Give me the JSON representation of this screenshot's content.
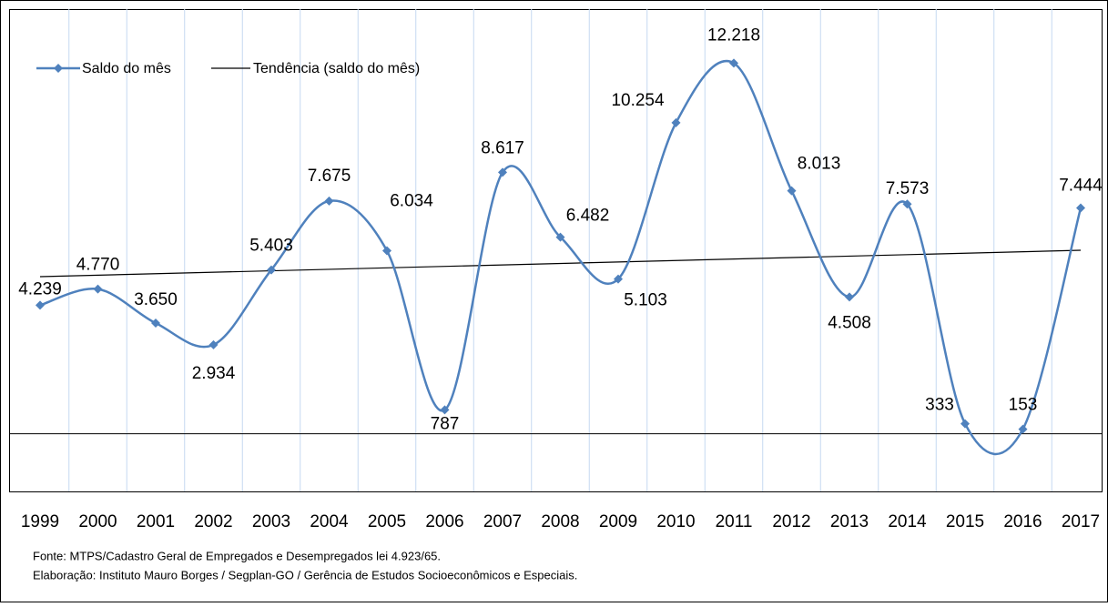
{
  "chart_data": {
    "type": "line",
    "categories": [
      "1999",
      "2000",
      "2001",
      "2002",
      "2003",
      "2004",
      "2005",
      "2006",
      "2007",
      "2008",
      "2009",
      "2010",
      "2011",
      "2012",
      "2013",
      "2014",
      "2015",
      "2016",
      "2017"
    ],
    "series": [
      {
        "name": "Saldo do mês",
        "color": "#4f81bd",
        "values": [
          4239,
          4770,
          3650,
          2934,
          5403,
          7675,
          6034,
          787,
          8617,
          6482,
          5103,
          10254,
          12218,
          8013,
          4508,
          7573,
          333,
          153,
          7444
        ],
        "value_labels": [
          "4.239",
          "4.770",
          "3.650",
          "2.934",
          "5.403",
          "7.675",
          "6.034",
          "787",
          "8.617",
          "6.482",
          "5.103",
          "10.254",
          "12.218",
          "8.013",
          "4.508",
          "7.573",
          "333",
          "153",
          "7.444"
        ]
      }
    ],
    "trend": {
      "name": "Tendência (saldo do mês)",
      "color": "#000000",
      "values": [
        5180,
        6050
      ]
    },
    "ylim": [
      -1900,
      14000
    ],
    "grid": true,
    "notes": [
      "Fonte: MTPS/Cadastro Geral de Empregados e Desempregados lei 4.923/65.",
      "Elaboração: Instituto Mauro Borges / Segplan-GO / Gerência de Estudos Socioeconômicos e Especiais."
    ]
  }
}
